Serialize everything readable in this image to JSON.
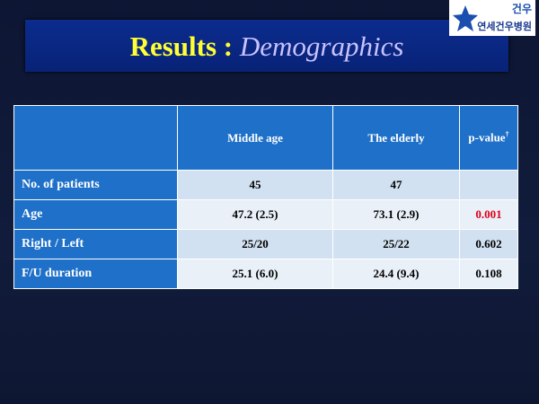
{
  "header": {
    "title_main": "Results :",
    "title_emphasis": "Demographics"
  },
  "logo": {
    "mark": "건우",
    "name": "연세건우병원"
  },
  "table": {
    "columns": [
      "Middle age",
      "The elderly",
      "p-value"
    ],
    "column_note": "†",
    "rows": [
      [
        "No. of patients",
        "45",
        "47"
      ],
      [
        "Age",
        "47.2 (2.5)",
        "73.1 (2.9)",
        "0.001"
      ],
      [
        "Right / Left",
        "25/20",
        "25/22",
        "0.602"
      ],
      [
        "F/U duration",
        "25.1 (6.0)",
        "24.4 (9.4)",
        "0.108"
      ]
    ]
  }
}
